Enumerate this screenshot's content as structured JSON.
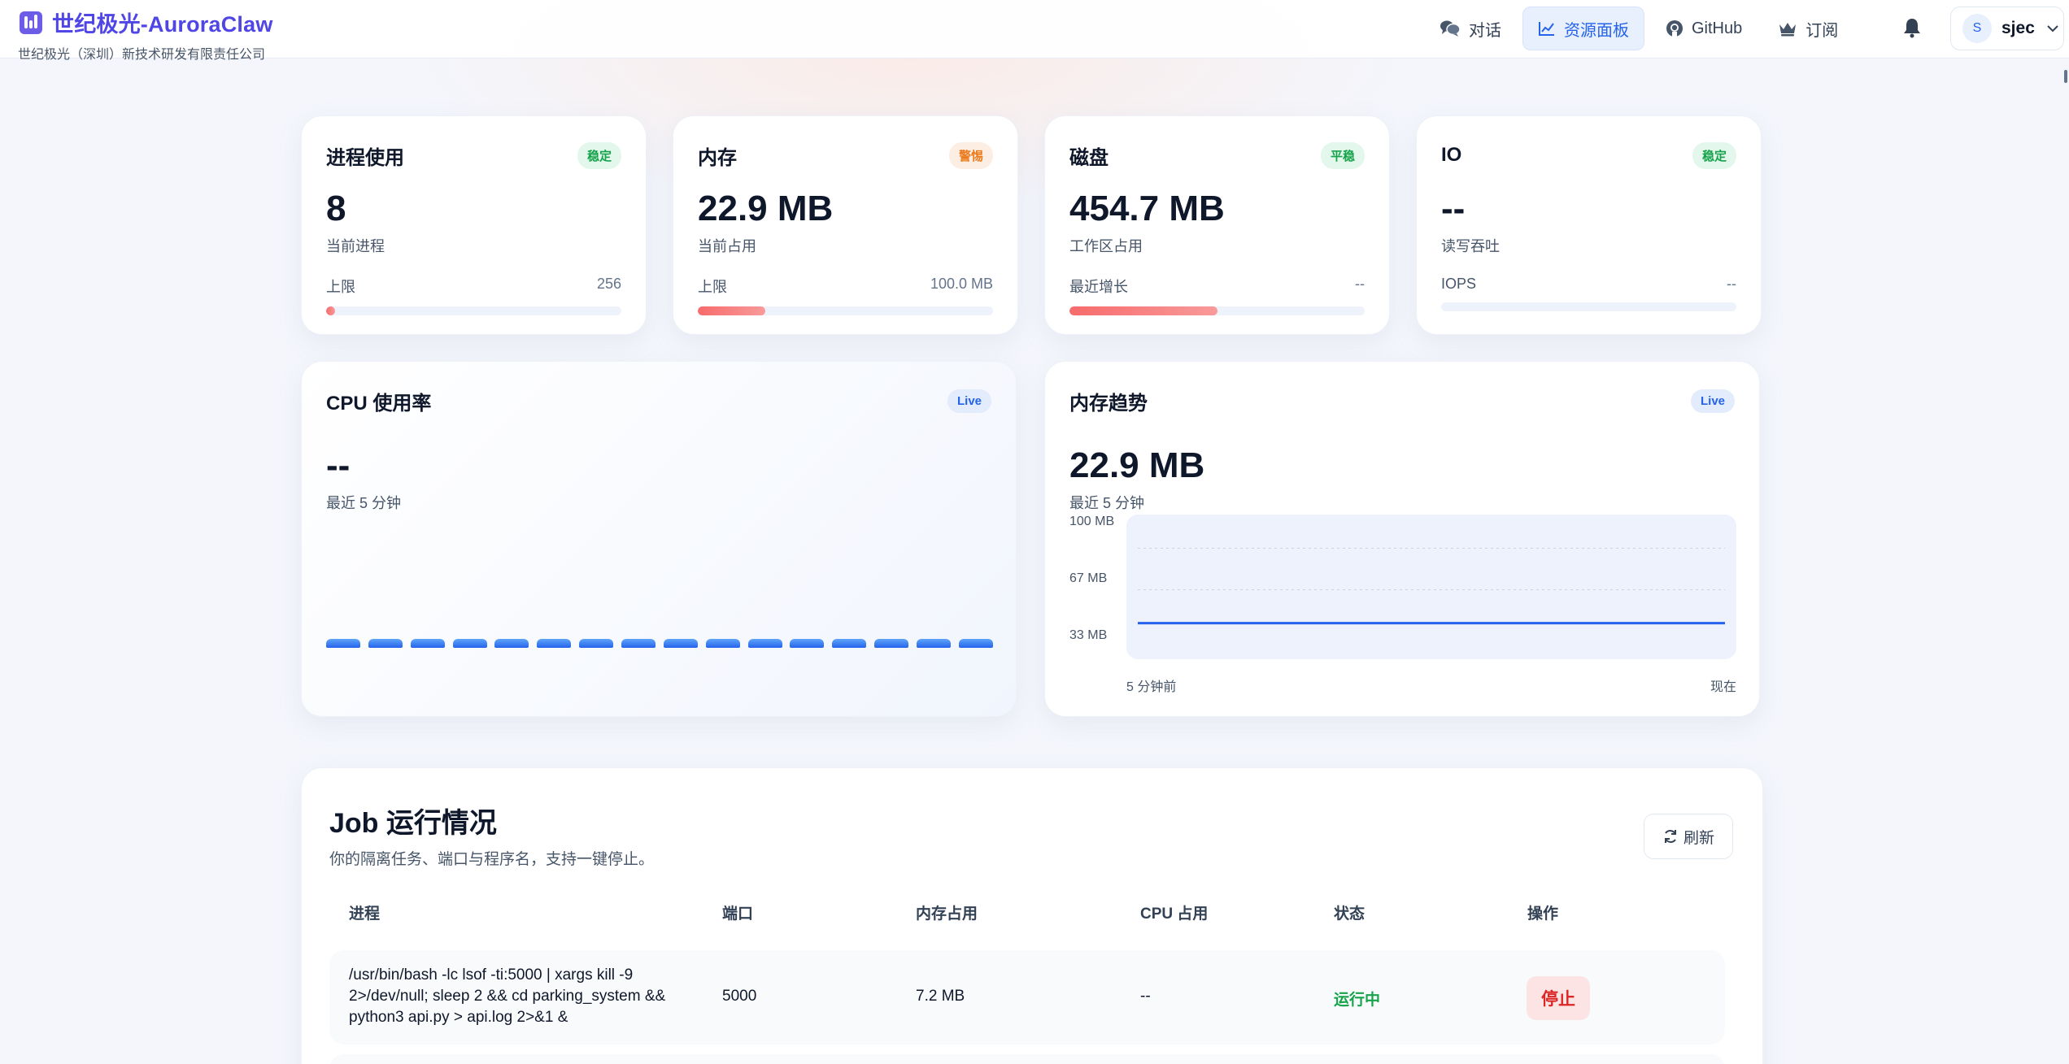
{
  "brand": {
    "title": "世纪极光-AuroraClaw",
    "subtitle": "世纪极光（深圳）新技术研发有限责任公司"
  },
  "nav": {
    "items": [
      {
        "label": "对话",
        "icon": "chat-bubbles-icon",
        "active": false
      },
      {
        "label": "资源面板",
        "icon": "chart-line-icon",
        "active": true
      },
      {
        "label": "GitHub",
        "icon": "github-icon",
        "active": false
      },
      {
        "label": "订阅",
        "icon": "crown-icon",
        "active": false
      }
    ]
  },
  "user": {
    "avatar_letter": "S",
    "name": "sjec"
  },
  "stats": [
    {
      "title": "进程使用",
      "badge": "稳定",
      "badge_color": "green",
      "value": "8",
      "sub": "当前进程",
      "limit_label": "上限",
      "limit_value": "256",
      "fill_percent": 3
    },
    {
      "title": "内存",
      "badge": "警惕",
      "badge_color": "orange",
      "value": "22.9 MB",
      "sub": "当前占用",
      "limit_label": "上限",
      "limit_value": "100.0 MB",
      "fill_percent": 23
    },
    {
      "title": "磁盘",
      "badge": "平稳",
      "badge_color": "green",
      "value": "454.7 MB",
      "sub": "工作区占用",
      "limit_label": "最近增长",
      "limit_value": "--",
      "fill_percent": 50
    },
    {
      "title": "IO",
      "badge": "稳定",
      "badge_color": "green",
      "value": "--",
      "sub": "读写吞吐",
      "limit_label": "IOPS",
      "limit_value": "--",
      "fill_percent": 0
    }
  ],
  "cpu": {
    "title": "CPU 使用率",
    "badge": "Live",
    "value": "--",
    "sub": "最近 5 分钟",
    "segments": 16
  },
  "memory_trend": {
    "title": "内存趋势",
    "badge": "Live",
    "value": "22.9 MB",
    "sub": "最近 5 分钟",
    "y_ticks": [
      "100 MB",
      "67 MB",
      "33 MB"
    ],
    "x_start": "5 分钟前",
    "x_end": "现在"
  },
  "chart_data": {
    "type": "line",
    "title": "内存趋势",
    "x": [
      "5 分钟前",
      "现在"
    ],
    "series": [
      {
        "values": [
          22.9,
          22.9
        ]
      }
    ],
    "ylim": [
      0,
      100
    ],
    "yticks": [
      "33 MB",
      "67 MB",
      "100 MB"
    ],
    "grid": true
  },
  "jobs": {
    "title": "Job 运行情况",
    "subtitle": "你的隔离任务、端口与程序名，支持一键停止。",
    "refresh_label": "刷新",
    "headers": [
      "进程",
      "端口",
      "内存占用",
      "CPU 占用",
      "状态",
      "操作"
    ],
    "rows": [
      {
        "command": "/usr/bin/bash -lc lsof -ti:5000 | xargs kill -9 2>/dev/null; sleep 2 && cd parking_system && python3 api.py > api.log 2>&1 &",
        "port": "5000",
        "memory": "7.2 MB",
        "cpu": "--",
        "status": "运行中",
        "action": "停止"
      }
    ]
  }
}
